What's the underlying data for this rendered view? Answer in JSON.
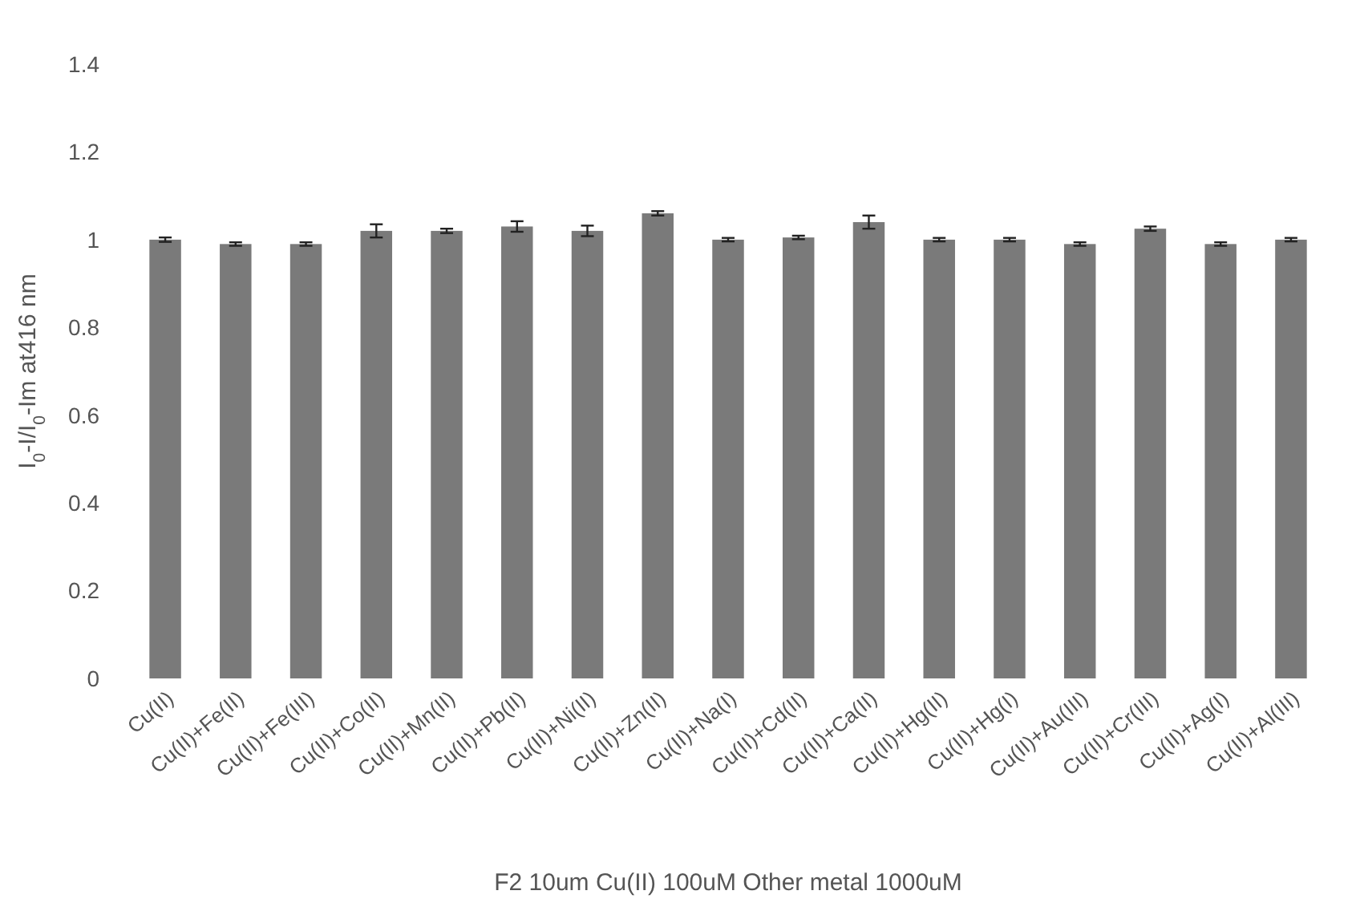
{
  "chart_data": {
    "type": "bar",
    "xlabel": "F2 10um Cu(II) 100uM Other metal 1000uM",
    "ylabel": "I$_{0}$-I/I$_{0}$-Im at416 nm",
    "categories": [
      "Cu(II)",
      "Cu(II)+Fe(II)",
      "Cu(II)+Fe(III)",
      "Cu(II)+Co(II)",
      "Cu(II)+Mn(II)",
      "Cu(II)+Pb(II)",
      "Cu(II)+Ni(II)",
      "Cu(II)+Zn(II)",
      "Cu(II)+Na(I)",
      "Cu(II)+Cd(II)",
      "Cu(II)+Ca(II)",
      "Cu(II)+Hg(II)",
      "Cu(II)+Hg(I)",
      "Cu(II)+Au(III)",
      "Cu(II)+Cr(III)",
      "Cu(II)+Ag(I)",
      "Cu(II)+Al(III)"
    ],
    "values": [
      1.0,
      0.99,
      0.99,
      1.02,
      1.02,
      1.03,
      1.02,
      1.06,
      1.0,
      1.005,
      1.04,
      1.0,
      1.0,
      0.99,
      1.025,
      0.99,
      1.0
    ],
    "errors": [
      0.005,
      0.004,
      0.004,
      0.015,
      0.005,
      0.012,
      0.012,
      0.005,
      0.004,
      0.004,
      0.015,
      0.004,
      0.004,
      0.004,
      0.005,
      0.004,
      0.004
    ],
    "color": "#7a7a7a",
    "ylim": [
      0,
      1.4
    ],
    "yticks": [
      0,
      0.2,
      0.4,
      0.6,
      0.8,
      1,
      1.2,
      1.4
    ],
    "grid": false
  }
}
